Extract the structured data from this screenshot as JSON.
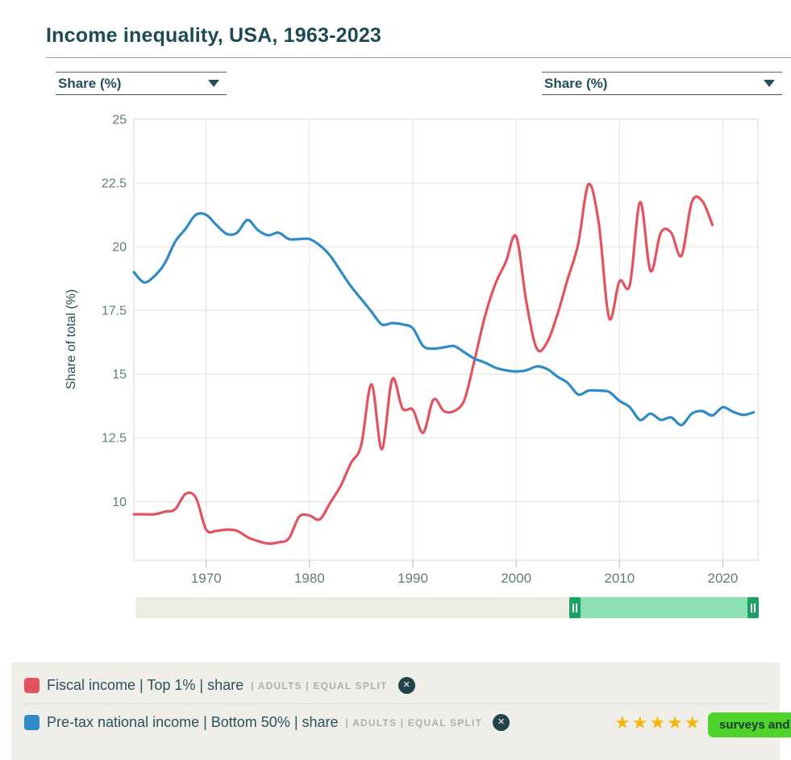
{
  "title": "Income inequality, USA, 1963-2023",
  "dropdowns": {
    "left_value": "Share (%)",
    "right_value": "Share (%)"
  },
  "chart_data": {
    "type": "line",
    "title": "Income inequality, USA, 1963-2023",
    "ylabel": "Share of total (%)",
    "xlabel": "",
    "x_start": 1963,
    "xlim": [
      1963,
      2023.4
    ],
    "ylim": [
      7.7,
      25
    ],
    "yticks": [
      10,
      12.5,
      15,
      17.5,
      20,
      22.5,
      25
    ],
    "xticks": [
      1970,
      1980,
      1990,
      2000,
      2010,
      2020
    ],
    "grid": true,
    "legend_position": "bottom",
    "series": [
      {
        "name": "Fiscal income | Top 1% | share | ADULTS | EQUAL SPLIT",
        "color": "#e3525f",
        "start_year": 1963,
        "values": [
          9.5,
          9.5,
          9.5,
          9.6,
          9.7,
          10.3,
          10.15,
          8.9,
          8.85,
          8.9,
          8.85,
          8.6,
          8.45,
          8.35,
          8.4,
          8.55,
          9.4,
          9.45,
          9.3,
          9.95,
          10.6,
          11.5,
          12.2,
          14.6,
          12.05,
          14.8,
          13.65,
          13.6,
          12.7,
          14.0,
          13.55,
          13.55,
          14.0,
          15.6,
          17.3,
          18.55,
          19.4,
          20.4,
          17.8,
          16.0,
          16.25,
          17.35,
          18.75,
          20.1,
          22.45,
          20.9,
          17.2,
          18.65,
          18.5,
          21.75,
          19.05,
          20.55,
          20.55,
          19.65,
          21.75,
          21.8,
          20.85
        ]
      },
      {
        "name": "Pre-tax national income | Bottom 50% | share | ADULTS | EQUAL SPLIT",
        "color": "#2e8bc5",
        "start_year": 1963,
        "values": [
          19.0,
          18.6,
          18.85,
          19.35,
          20.2,
          20.7,
          21.25,
          21.25,
          20.85,
          20.5,
          20.55,
          21.05,
          20.65,
          20.45,
          20.55,
          20.3,
          20.3,
          20.3,
          20.05,
          19.65,
          19.05,
          18.45,
          17.95,
          17.45,
          16.95,
          17.0,
          16.95,
          16.8,
          16.1,
          16.0,
          16.05,
          16.1,
          15.85,
          15.6,
          15.45,
          15.25,
          15.15,
          15.1,
          15.15,
          15.3,
          15.2,
          14.9,
          14.65,
          14.2,
          14.35,
          14.35,
          14.3,
          13.95,
          13.7,
          13.2,
          13.45,
          13.2,
          13.3,
          13.0,
          13.45,
          13.55,
          13.38,
          13.7,
          13.52,
          13.4,
          13.5
        ]
      }
    ]
  },
  "slider": {
    "min_year": 1963,
    "max_year": 2023.4,
    "from_year": 2005,
    "to_year": 2023.4,
    "track_color": "#edece1",
    "range_color": "#8ce0b2",
    "handle_color": "#18a263"
  },
  "legend": {
    "rows": [
      {
        "color": "#e3525f",
        "label": "Fiscal income | Top 1% | share",
        "meta": "| ADULTS | EQUAL SPLIT",
        "close_symbol": "✕"
      },
      {
        "color": "#2e8bc5",
        "label": "Pre-tax national income | Bottom 50% | share",
        "meta": "| ADULTS | EQUAL SPLIT",
        "close_symbol": "✕"
      }
    ]
  },
  "rating": {
    "stars_text": "★★★★★",
    "star_color": "#f6b60b",
    "button_label": "surveys and",
    "button_color": "#4fd32b"
  }
}
